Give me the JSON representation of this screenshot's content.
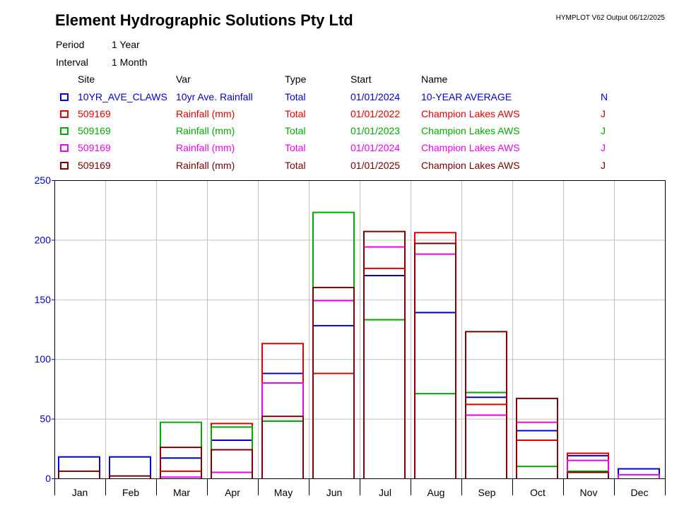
{
  "header": {
    "title": "Element Hydrographic Solutions Pty Ltd",
    "output": "HYMPLOT V62  Output 06/12/2025",
    "period_label": "Period",
    "period_value": "1 Year",
    "interval_label": "Interval",
    "interval_value": "1 Month"
  },
  "legend": {
    "headers": {
      "site": "Site",
      "var": "Var",
      "type": "Type",
      "start": "Start",
      "name": "Name"
    },
    "rows": [
      {
        "site": "10YR_AVE_CLAWS",
        "var": "10yr Ave. Rainfall",
        "type": "Total",
        "start": "01/01/2024",
        "name": "10-YEAR AVERAGE",
        "flag": "N",
        "color": "#0000cc"
      },
      {
        "site": "509169",
        "var": "Rainfall (mm)",
        "type": "Total",
        "start": "01/01/2022",
        "name": "Champion Lakes AWS",
        "flag": "J",
        "color": "#e00000"
      },
      {
        "site": "509169",
        "var": "Rainfall (mm)",
        "type": "Total",
        "start": "01/01/2023",
        "name": "Champion Lakes AWS",
        "flag": "J",
        "color": "#00aa00"
      },
      {
        "site": "509169",
        "var": "Rainfall (mm)",
        "type": "Total",
        "start": "01/01/2024",
        "name": "Champion Lakes AWS",
        "flag": "J",
        "color": "#ee00ee"
      },
      {
        "site": "509169",
        "var": "Rainfall (mm)",
        "type": "Total",
        "start": "01/01/2025",
        "name": "Champion Lakes AWS",
        "flag": "J",
        "color": "#770000"
      }
    ]
  },
  "chart_data": {
    "type": "bar",
    "title": "",
    "xlabel": "",
    "ylabel": "",
    "ylim": [
      0,
      250
    ],
    "yticks": [
      0,
      50,
      100,
      150,
      200,
      250
    ],
    "grid": true,
    "axis_color": "#0000cc",
    "categories": [
      "Jan",
      "Feb",
      "Mar",
      "Apr",
      "May",
      "Jun",
      "Jul",
      "Aug",
      "Sep",
      "Oct",
      "Nov",
      "Dec"
    ],
    "series": [
      {
        "color": "#0000cc",
        "values": [
          18,
          18,
          17,
          32,
          88,
          128,
          170,
          139,
          68,
          40,
          19,
          8
        ]
      },
      {
        "color": "#e00000",
        "values": [
          0,
          0,
          6,
          46,
          113,
          88,
          176,
          206,
          62,
          32,
          21,
          0
        ]
      },
      {
        "color": "#00aa00",
        "values": [
          0,
          0,
          47,
          43,
          48,
          223,
          133,
          71,
          72,
          10,
          6,
          0
        ]
      },
      {
        "color": "#ee00ee",
        "values": [
          0,
          0,
          1,
          5,
          80,
          149,
          194,
          188,
          53,
          47,
          15,
          3
        ]
      },
      {
        "color": "#770000",
        "values": [
          6,
          2,
          26,
          24,
          52,
          160,
          207,
          197,
          123,
          67,
          5,
          0
        ]
      }
    ]
  }
}
